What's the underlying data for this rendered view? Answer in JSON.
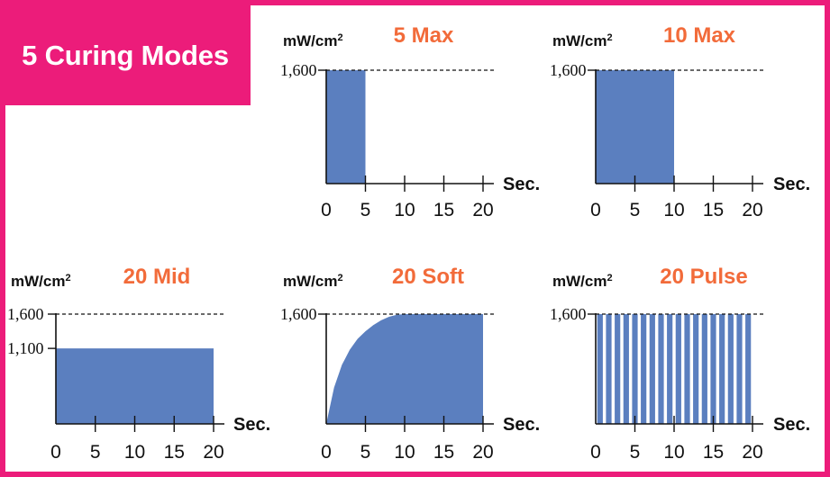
{
  "header": {
    "badge_text": "5 Curing Modes"
  },
  "colors": {
    "frame": "#ec1c7a",
    "fill": "#5b7fbf",
    "mode_title": "#f26b3a",
    "text": "#111111"
  },
  "chart_data": [
    {
      "type": "area",
      "title": "5 Max",
      "ylabel": "mW/cm²",
      "xlabel": "Sec.",
      "xticks": [
        0,
        5,
        10,
        15,
        20
      ],
      "xlim": [
        0,
        20
      ],
      "ylim": [
        0,
        1600
      ],
      "reference_lines": [
        1600
      ],
      "ytick_labels": [
        "1,600"
      ],
      "series": [
        {
          "kind": "step",
          "x": [
            0,
            5
          ],
          "y": [
            1600,
            1600
          ]
        }
      ]
    },
    {
      "type": "area",
      "title": "10 Max",
      "ylabel": "mW/cm²",
      "xlabel": "Sec.",
      "xticks": [
        0,
        5,
        10,
        15,
        20
      ],
      "xlim": [
        0,
        20
      ],
      "ylim": [
        0,
        1600
      ],
      "reference_lines": [
        1600
      ],
      "ytick_labels": [
        "1,600"
      ],
      "series": [
        {
          "kind": "step",
          "x": [
            0,
            10
          ],
          "y": [
            1600,
            1600
          ]
        }
      ]
    },
    {
      "type": "area",
      "title": "20 Mid",
      "ylabel": "mW/cm²",
      "xlabel": "Sec.",
      "xticks": [
        0,
        5,
        10,
        15,
        20
      ],
      "xlim": [
        0,
        20
      ],
      "ylim": [
        0,
        1600
      ],
      "reference_lines": [
        1600
      ],
      "ytick_labels": [
        "1,600",
        "1,100"
      ],
      "series": [
        {
          "kind": "step",
          "x": [
            0,
            20
          ],
          "y": [
            1100,
            1100
          ]
        }
      ]
    },
    {
      "type": "area",
      "title": "20 Soft",
      "ylabel": "mW/cm²",
      "xlabel": "Sec.",
      "xticks": [
        0,
        5,
        10,
        15,
        20
      ],
      "xlim": [
        0,
        20
      ],
      "ylim": [
        0,
        1600
      ],
      "reference_lines": [
        1600
      ],
      "ytick_labels": [
        "1,600"
      ],
      "series": [
        {
          "kind": "curve",
          "x": [
            0,
            1,
            2,
            3,
            4,
            5,
            6,
            7,
            8,
            9,
            10,
            20
          ],
          "y": [
            0,
            530,
            860,
            1080,
            1240,
            1350,
            1440,
            1510,
            1560,
            1590,
            1600,
            1600
          ]
        }
      ]
    },
    {
      "type": "bar",
      "title": "20 Pulse",
      "ylabel": "mW/cm²",
      "xlabel": "Sec.",
      "xticks": [
        0,
        5,
        10,
        15,
        20
      ],
      "xlim": [
        0,
        20
      ],
      "ylim": [
        0,
        1600
      ],
      "reference_lines": [
        1600
      ],
      "ytick_labels": [
        "1,600"
      ],
      "series": [
        {
          "kind": "pulse",
          "pulse_count": 18,
          "value": 1600,
          "start": 0,
          "end": 20
        }
      ]
    }
  ]
}
